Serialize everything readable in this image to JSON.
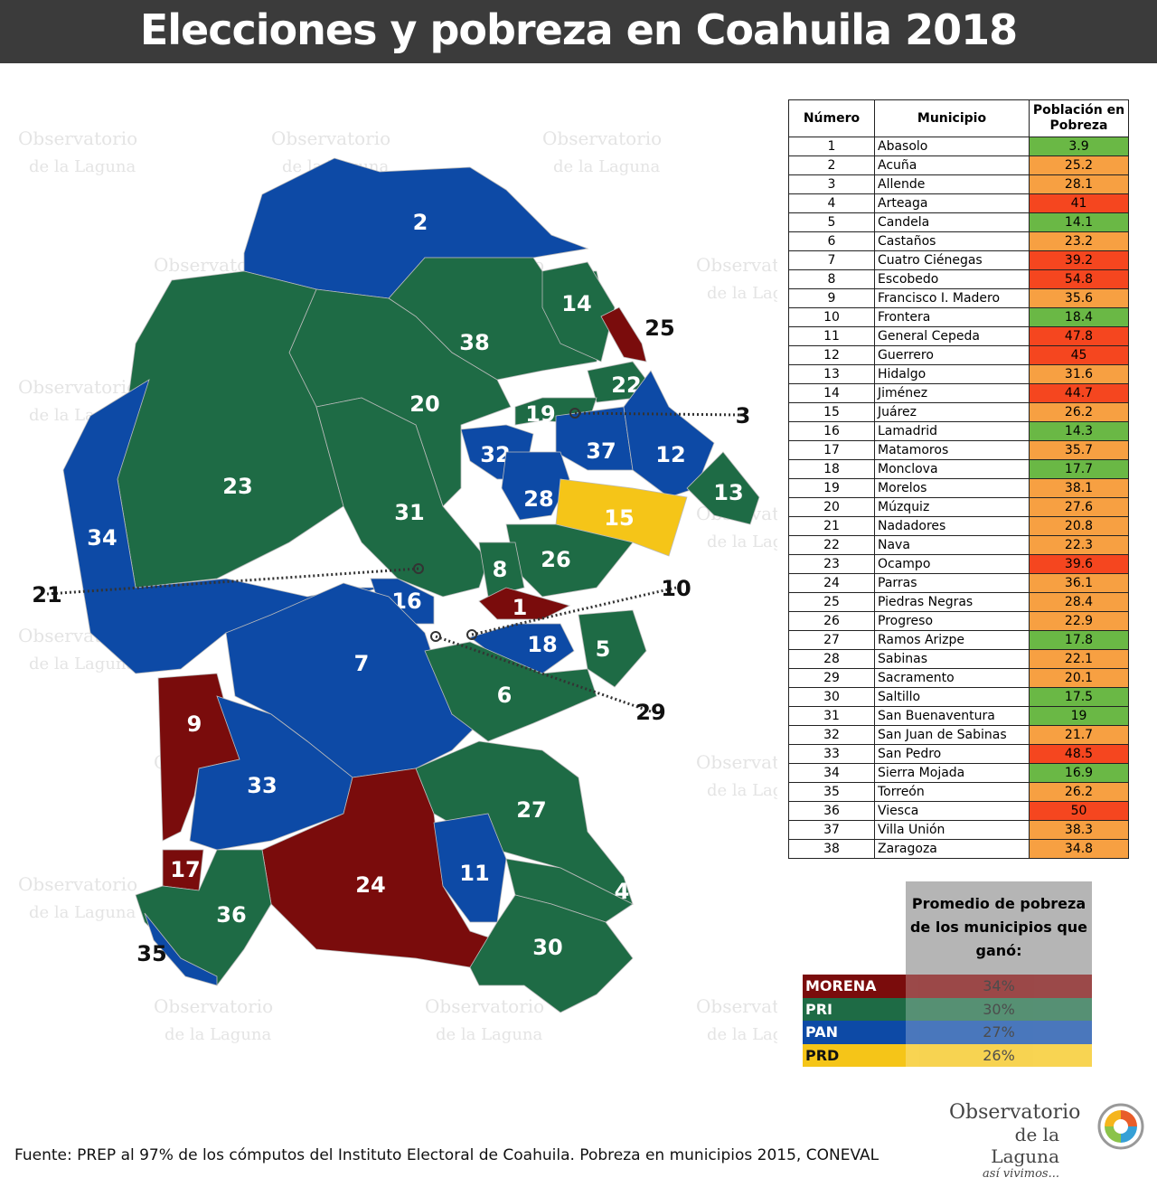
{
  "header": {
    "title": "Elecciones y pobreza en Coahuila 2018"
  },
  "table": {
    "columns": [
      "Número",
      "Municipio",
      "Población en Pobreza"
    ],
    "rows": [
      [
        1,
        "Abasolo",
        3.9
      ],
      [
        2,
        "Acuña",
        25.2
      ],
      [
        3,
        "Allende",
        28.1
      ],
      [
        4,
        "Arteaga",
        41
      ],
      [
        5,
        "Candela",
        14.1
      ],
      [
        6,
        "Castaños",
        23.2
      ],
      [
        7,
        "Cuatro Ciénegas",
        39.2
      ],
      [
        8,
        "Escobedo",
        54.8
      ],
      [
        9,
        "Francisco I. Madero",
        35.6
      ],
      [
        10,
        "Frontera",
        18.4
      ],
      [
        11,
        "General Cepeda",
        47.8
      ],
      [
        12,
        "Guerrero",
        45
      ],
      [
        13,
        "Hidalgo",
        31.6
      ],
      [
        14,
        "Jiménez",
        44.7
      ],
      [
        15,
        "Juárez",
        26.2
      ],
      [
        16,
        "Lamadrid",
        14.3
      ],
      [
        17,
        "Matamoros",
        35.7
      ],
      [
        18,
        "Monclova",
        17.7
      ],
      [
        19,
        "Morelos",
        38.1
      ],
      [
        20,
        "Múzquiz",
        27.6
      ],
      [
        21,
        "Nadadores",
        20.8
      ],
      [
        22,
        "Nava",
        22.3
      ],
      [
        23,
        "Ocampo",
        39.6
      ],
      [
        24,
        "Parras",
        36.1
      ],
      [
        25,
        "Piedras Negras",
        28.4
      ],
      [
        26,
        "Progreso",
        22.9
      ],
      [
        27,
        "Ramos Arizpe",
        17.8
      ],
      [
        28,
        "Sabinas",
        22.1
      ],
      [
        29,
        "Sacramento",
        20.1
      ],
      [
        30,
        "Saltillo",
        17.5
      ],
      [
        31,
        "San Buenaventura",
        19
      ],
      [
        32,
        "San Juan de Sabinas",
        21.7
      ],
      [
        33,
        "San Pedro",
        48.5
      ],
      [
        34,
        "Sierra Mojada",
        16.9
      ],
      [
        35,
        "Torreón",
        26.2
      ],
      [
        36,
        "Viesca",
        50
      ],
      [
        37,
        "Villa Unión",
        38.3
      ],
      [
        38,
        "Zaragoza",
        34.8
      ]
    ]
  },
  "legend": {
    "title": "Promedio de pobreza de los municipios que ganó:",
    "rows": [
      {
        "party": "MORENA",
        "value": "34%",
        "color": "#7a0c0c"
      },
      {
        "party": "PRI",
        "value": "30%",
        "color": "#1e6b45"
      },
      {
        "party": "PAN",
        "value": "27%",
        "color": "#0d4aa6"
      },
      {
        "party": "PRD",
        "value": "26%",
        "color": "#f5c518"
      }
    ]
  },
  "map": {
    "regions": [
      {
        "label": "2",
        "color": "#0d4aa6"
      },
      {
        "label": "38",
        "color": "#1e6b45"
      },
      {
        "label": "14",
        "color": "#1e6b45"
      },
      {
        "label": "25",
        "color": "#7a0c0c"
      },
      {
        "label": "22",
        "color": "#1e6b45"
      },
      {
        "label": "20",
        "color": "#1e6b45"
      },
      {
        "label": "23",
        "color": "#1e6b45"
      },
      {
        "label": "34",
        "color": "#0d4aa6"
      },
      {
        "label": "31",
        "color": "#1e6b45"
      },
      {
        "label": "19",
        "color": "#1e6b45"
      },
      {
        "label": "32",
        "color": "#0d4aa6"
      },
      {
        "label": "37",
        "color": "#0d4aa6"
      },
      {
        "label": "12",
        "color": "#0d4aa6"
      },
      {
        "label": "13",
        "color": "#1e6b45"
      },
      {
        "label": "28",
        "color": "#0d4aa6"
      },
      {
        "label": "15",
        "color": "#f5c518"
      },
      {
        "label": "26",
        "color": "#1e6b45"
      },
      {
        "label": "8",
        "color": "#1e6b45"
      },
      {
        "label": "1",
        "color": "#7a0c0c"
      },
      {
        "label": "16",
        "color": "#0d4aa6"
      },
      {
        "label": "5",
        "color": "#1e6b45"
      },
      {
        "label": "18",
        "color": "#0d4aa6"
      },
      {
        "label": "7",
        "color": "#0d4aa6"
      },
      {
        "label": "6",
        "color": "#1e6b45"
      },
      {
        "label": "9",
        "color": "#7a0c0c"
      },
      {
        "label": "33",
        "color": "#0d4aa6"
      },
      {
        "label": "27",
        "color": "#1e6b45"
      },
      {
        "label": "24",
        "color": "#7a0c0c"
      },
      {
        "label": "11",
        "color": "#0d4aa6"
      },
      {
        "label": "4",
        "color": "#1e6b45"
      },
      {
        "label": "30",
        "color": "#1e6b45"
      },
      {
        "label": "17",
        "color": "#7a0c0c"
      },
      {
        "label": "36",
        "color": "#1e6b45"
      },
      {
        "label": "35",
        "color": "#0d4aa6"
      },
      {
        "label": "3",
        "color": "#0d4aa6"
      },
      {
        "label": "10",
        "color": "#1e6b45"
      },
      {
        "label": "21",
        "color": "#1e6b45"
      },
      {
        "label": "29",
        "color": "#0d4aa6"
      }
    ]
  },
  "watermark": {
    "line1": "Observatorio",
    "line2": "de la Laguna"
  },
  "source": "Fuente: PREP al 97% de los cómputos del Instituto Electoral de Coahuila. Pobreza en municipios 2015, CONEVAL",
  "logo": {
    "line1": "Observatorio",
    "line2": "de la Laguna",
    "tagline": "así vivimos..."
  }
}
